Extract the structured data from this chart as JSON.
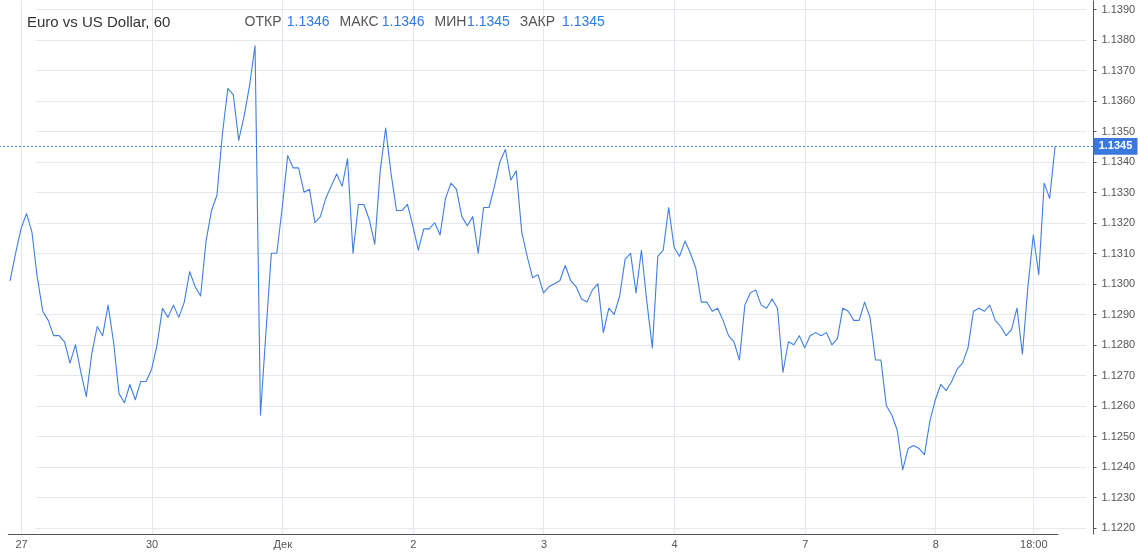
{
  "chart_data": {
    "type": "line",
    "title": "Euro vs US Dollar, 60",
    "annotations": [
      "ОТКР",
      "1.1346",
      "МАКС",
      "1.1346",
      "МИН",
      "1.1345",
      "ЗАКР",
      "1.1345"
    ],
    "color": "#3f7fe0",
    "grid": true,
    "categories": [
      null,
      null,
      "27",
      null,
      null,
      null,
      null,
      null,
      null,
      null,
      null,
      null,
      null,
      null,
      null,
      null,
      null,
      null,
      null,
      null,
      null,
      null,
      null,
      null,
      null,
      null,
      "30",
      null,
      null,
      null,
      null,
      null,
      null,
      null,
      null,
      null,
      null,
      null,
      null,
      null,
      null,
      null,
      null,
      null,
      null,
      null,
      null,
      null,
      null,
      null,
      "Дек",
      null,
      null,
      null,
      null,
      null,
      null,
      null,
      null,
      null,
      null,
      null,
      null,
      null,
      null,
      null,
      null,
      null,
      null,
      null,
      null,
      null,
      null,
      null,
      "2",
      null,
      null,
      null,
      null,
      null,
      null,
      null,
      null,
      null,
      null,
      null,
      null,
      null,
      null,
      null,
      null,
      null,
      null,
      null,
      null,
      null,
      null,
      null,
      "3",
      null,
      null,
      null,
      null,
      null,
      null,
      null,
      null,
      null,
      null,
      null,
      null,
      null,
      null,
      null,
      null,
      null,
      null,
      null,
      null,
      null,
      null,
      null,
      "4",
      null,
      null,
      null,
      null,
      null,
      null,
      null,
      null,
      null,
      null,
      null,
      null,
      null,
      null,
      null,
      null,
      null,
      null,
      null,
      null,
      null,
      null,
      null,
      "7",
      null,
      null,
      null,
      null,
      null,
      null,
      null,
      null,
      null,
      null,
      null,
      null,
      null,
      null,
      null,
      null,
      null,
      null,
      null,
      null,
      null,
      null,
      null,
      "8",
      null,
      null,
      null,
      null,
      null,
      null,
      null,
      null,
      null,
      null,
      null,
      null,
      null,
      null,
      null,
      null,
      null,
      "18:00",
      null,
      null,
      null,
      null
    ],
    "ylim": [
      1.1218,
      1.1393
    ],
    "yticks": [
      {
        "value": 1.122,
        "label": "1.1220"
      },
      {
        "value": 1.123,
        "label": "1.1230"
      },
      {
        "value": 1.124,
        "label": "1.1240"
      },
      {
        "value": 1.125,
        "label": "1.1250"
      },
      {
        "value": 1.126,
        "label": "1.1260"
      },
      {
        "value": 1.127,
        "label": "1.1270"
      },
      {
        "value": 1.128,
        "label": "1.1280"
      },
      {
        "value": 1.129,
        "label": "1.1290"
      },
      {
        "value": 1.13,
        "label": "1.1300"
      },
      {
        "value": 1.131,
        "label": "1.1310"
      },
      {
        "value": 1.132,
        "label": "1.1320"
      },
      {
        "value": 1.133,
        "label": "1.1330"
      },
      {
        "value": 1.134,
        "label": "1.1340"
      },
      {
        "value": 1.135,
        "label": "1.1350"
      },
      {
        "value": 1.136,
        "label": "1.1360"
      },
      {
        "value": 1.137,
        "label": "1.1370"
      },
      {
        "value": 1.138,
        "label": "1.1380"
      },
      {
        "value": 1.139,
        "label": "1.1390"
      }
    ],
    "ref_lines": [
      {
        "axis": "y",
        "value": 1.1345,
        "label": "1.1345",
        "color": "#3a78dd",
        "line_style": "dotted"
      }
    ],
    "values": [
      1.1301,
      1.131,
      1.1318,
      1.1323,
      1.1317,
      1.1302,
      1.1291,
      1.1288,
      1.1283,
      1.1283,
      1.1281,
      1.1274,
      1.128,
      1.1271,
      1.1263,
      1.1277,
      1.1286,
      1.1283,
      1.1293,
      1.1281,
      1.1264,
      1.1261,
      1.1267,
      1.1262,
      1.1268,
      1.1268,
      1.1272,
      1.128,
      1.1292,
      1.1289,
      1.1293,
      1.1289,
      1.1294,
      1.1304,
      1.1299,
      1.1296,
      1.1314,
      1.1324,
      1.1329,
      1.1349,
      1.1364,
      1.1362,
      1.1347,
      1.1355,
      1.1365,
      1.1378,
      1.1257,
      1.1284,
      1.131,
      1.131,
      1.1325,
      1.1342,
      1.1338,
      1.1338,
      1.133,
      1.1331,
      1.132,
      1.1322,
      1.1328,
      1.1332,
      1.1336,
      1.1332,
      1.1341,
      1.131,
      1.1326,
      1.1326,
      1.1321,
      1.1313,
      1.1337,
      1.1351,
      1.1336,
      1.1324,
      1.1324,
      1.1326,
      1.1319,
      1.1311,
      1.1318,
      1.1318,
      1.132,
      1.1316,
      1.1328,
      1.1333,
      1.1331,
      1.1322,
      1.1319,
      1.1322,
      1.131,
      1.1325,
      1.1325,
      1.1332,
      1.134,
      1.1344,
      1.1334,
      1.1337,
      1.1317,
      1.1309,
      1.1302,
      1.1303,
      1.1297,
      1.1299,
      1.13,
      1.1301,
      1.1306,
      1.1301,
      1.1299,
      1.1295,
      1.1294,
      1.1298,
      1.13,
      1.1284,
      1.1292,
      1.129,
      1.1296,
      1.1308,
      1.131,
      1.1297,
      1.1311,
      1.1294,
      1.1279,
      1.1309,
      1.1311,
      1.1325,
      1.1312,
      1.1309,
      1.1314,
      1.131,
      1.1305,
      1.1294,
      1.1294,
      1.1291,
      1.1292,
      1.1288,
      1.1283,
      1.1281,
      1.1275,
      1.1293,
      1.1297,
      1.1298,
      1.1293,
      1.1292,
      1.1295,
      1.1292,
      1.1271,
      1.1281,
      1.128,
      1.1283,
      1.1279,
      1.1283,
      1.1284,
      1.1283,
      1.1284,
      1.128,
      1.1282,
      1.1292,
      1.1291,
      1.1288,
      1.1288,
      1.1294,
      1.1289,
      1.1275,
      1.1275,
      1.126,
      1.1257,
      1.1252,
      1.1239,
      1.1246,
      1.1247,
      1.1246,
      1.1244,
      1.1255,
      1.1262,
      1.1267,
      1.1265,
      1.1268,
      1.1272,
      1.1274,
      1.1279,
      1.1291,
      1.1292,
      1.1291,
      1.1293,
      1.1288,
      1.1286,
      1.1283,
      1.1285,
      1.1292,
      1.1277,
      1.1299,
      1.1316,
      1.1303,
      1.1333,
      1.1328,
      1.1345
    ]
  }
}
